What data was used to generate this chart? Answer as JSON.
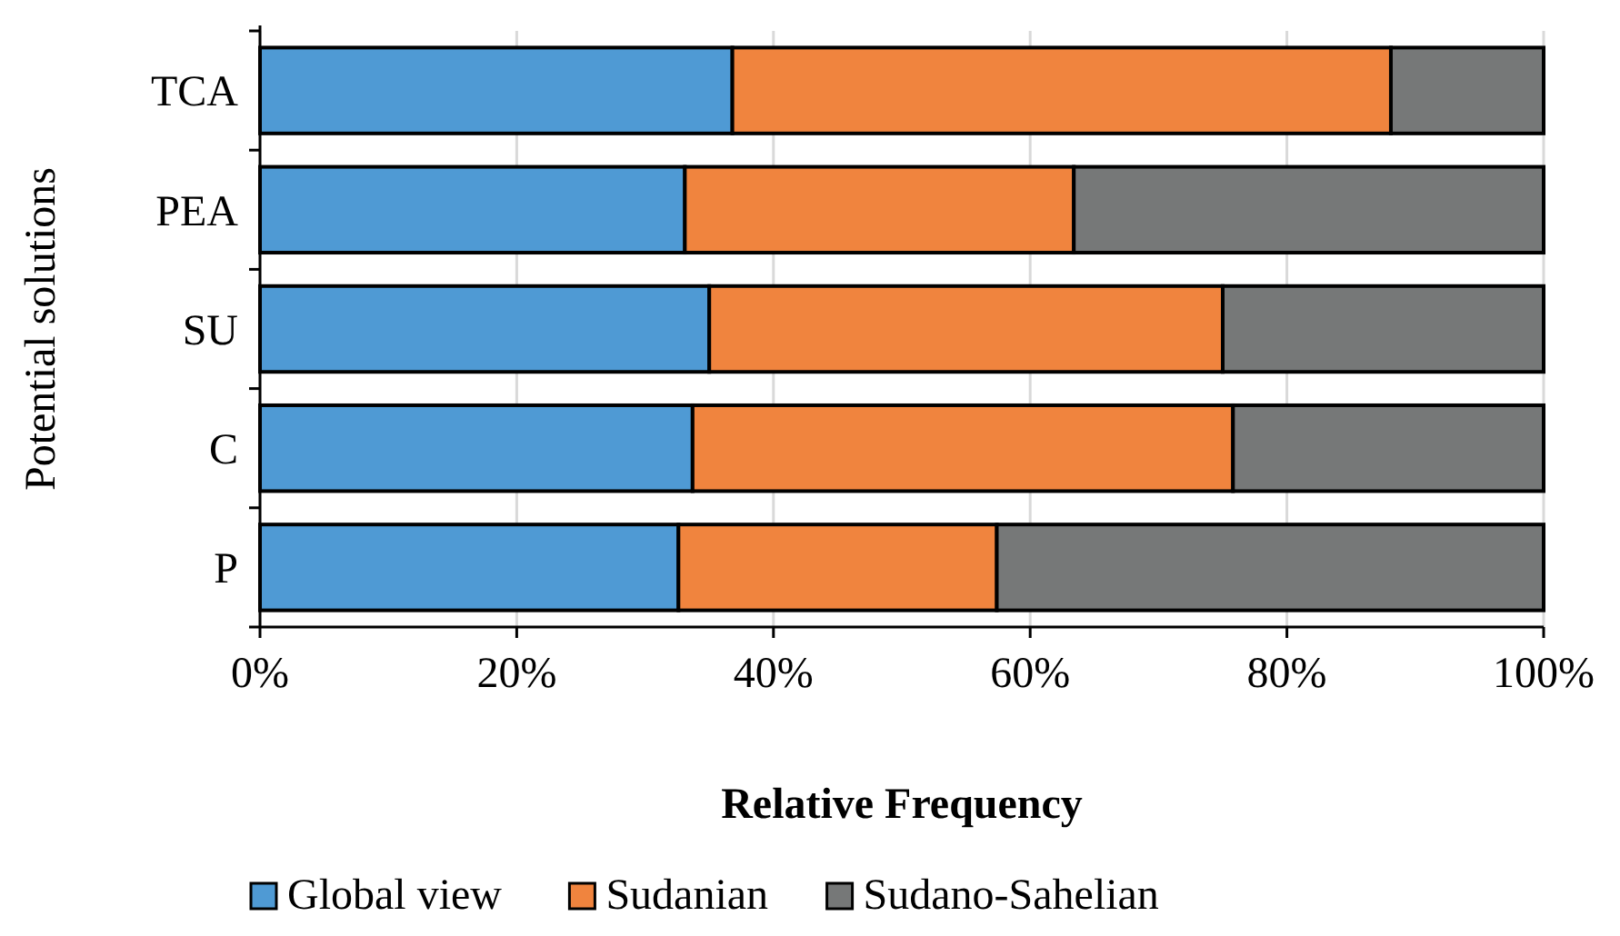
{
  "chart_data": {
    "type": "bar",
    "orientation": "horizontal",
    "stacked": true,
    "xlabel": "Relative Frequency",
    "ylabel": "Potential solutions",
    "categories": [
      "TCA",
      "PEA",
      "SU",
      "C",
      "P"
    ],
    "series": [
      {
        "name": "Global view",
        "color": "#4f9ad4",
        "values": [
          36.8,
          33.1,
          35.0,
          33.7,
          32.6
        ]
      },
      {
        "name": "Sudanian",
        "color": "#f0843e",
        "values": [
          51.3,
          30.3,
          40.0,
          42.1,
          24.8
        ]
      },
      {
        "name": "Sudano-Sahelian",
        "color": "#767878",
        "values": [
          11.9,
          36.6,
          25.0,
          24.2,
          42.6
        ]
      }
    ],
    "xlim": [
      0,
      100
    ],
    "xticks": [
      {
        "value": 0,
        "label": "0%"
      },
      {
        "value": 20,
        "label": "20%"
      },
      {
        "value": 40,
        "label": "40%"
      },
      {
        "value": 60,
        "label": "60%"
      },
      {
        "value": 80,
        "label": "80%"
      },
      {
        "value": 100,
        "label": "100%"
      }
    ],
    "grid": "x",
    "legend": "bottom"
  }
}
